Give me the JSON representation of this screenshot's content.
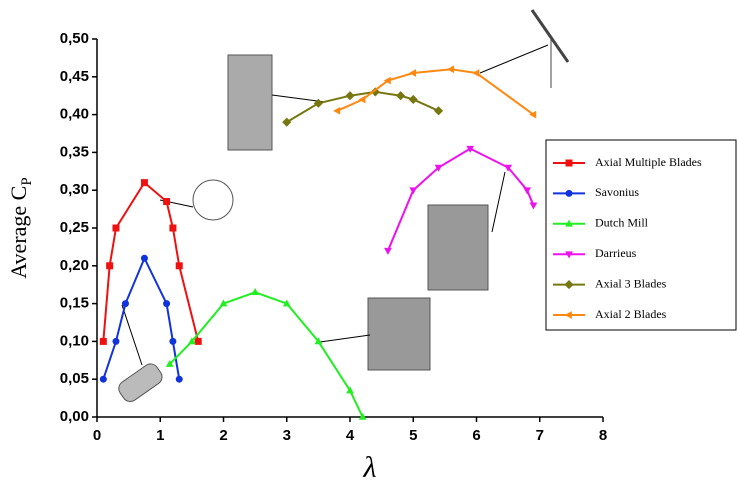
{
  "chart_data": {
    "type": "line",
    "x_label": "λ",
    "y_label": "Average C",
    "y_label_sub": "P",
    "xlim": [
      0,
      8
    ],
    "xticks": [
      0,
      1,
      2,
      3,
      4,
      5,
      6,
      7,
      8
    ],
    "ylim": [
      0,
      0.5
    ],
    "yticks": [
      {
        "value": 0,
        "label": "0,00"
      },
      {
        "value": 0.05,
        "label": "0,05"
      },
      {
        "value": 0.1,
        "label": "0,10"
      },
      {
        "value": 0.15,
        "label": "0,15"
      },
      {
        "value": 0.2,
        "label": "0,20"
      },
      {
        "value": 0.25,
        "label": "0,25"
      },
      {
        "value": 0.3,
        "label": "0,30"
      },
      {
        "value": 0.35,
        "label": "0,35"
      },
      {
        "value": 0.4,
        "label": "0,40"
      },
      {
        "value": 0.45,
        "label": "0,45"
      },
      {
        "value": 0.5,
        "label": "0,50"
      }
    ],
    "series": [
      {
        "name": "Axial Multiple Blades",
        "color": "#ee1111",
        "marker": "square",
        "x": [
          0.1,
          0.2,
          0.3,
          0.75,
          1.1,
          1.2,
          1.3,
          1.6
        ],
        "values": [
          0.1,
          0.2,
          0.25,
          0.31,
          0.285,
          0.25,
          0.2,
          0.1
        ]
      },
      {
        "name": "Savonius",
        "color": "#1133dd",
        "marker": "circle",
        "x": [
          0.1,
          0.3,
          0.45,
          0.75,
          1.1,
          1.2,
          1.3
        ],
        "values": [
          0.05,
          0.1,
          0.15,
          0.21,
          0.15,
          0.1,
          0.05
        ]
      },
      {
        "name": "Dutch Mill",
        "color": "#22ee22",
        "marker": "triangle-up",
        "x": [
          1.15,
          1.5,
          2.0,
          2.5,
          3.0,
          3.5,
          4.0,
          4.2
        ],
        "values": [
          0.07,
          0.1,
          0.15,
          0.165,
          0.15,
          0.1,
          0.035,
          0
        ]
      },
      {
        "name": "Darrieus",
        "color": "#ee11ee",
        "marker": "triangle-down",
        "x": [
          4.6,
          5.0,
          5.4,
          5.9,
          6.5,
          6.8,
          6.9
        ],
        "values": [
          0.22,
          0.3,
          0.33,
          0.355,
          0.33,
          0.3,
          0.28
        ]
      },
      {
        "name": "Axial 3 Blades",
        "color": "#777711",
        "marker": "diamond",
        "x": [
          3.0,
          3.5,
          4.0,
          4.4,
          4.8,
          5.0,
          5.4
        ],
        "values": [
          0.39,
          0.415,
          0.425,
          0.43,
          0.425,
          0.42,
          0.405
        ]
      },
      {
        "name": "Axial 2 Blades",
        "color": "#ff8811",
        "marker": "triangle-left",
        "x": [
          3.8,
          4.2,
          4.6,
          5.0,
          5.6,
          6.0,
          6.9
        ],
        "values": [
          0.405,
          0.42,
          0.445,
          0.455,
          0.46,
          0.455,
          0.4
        ]
      }
    ]
  }
}
